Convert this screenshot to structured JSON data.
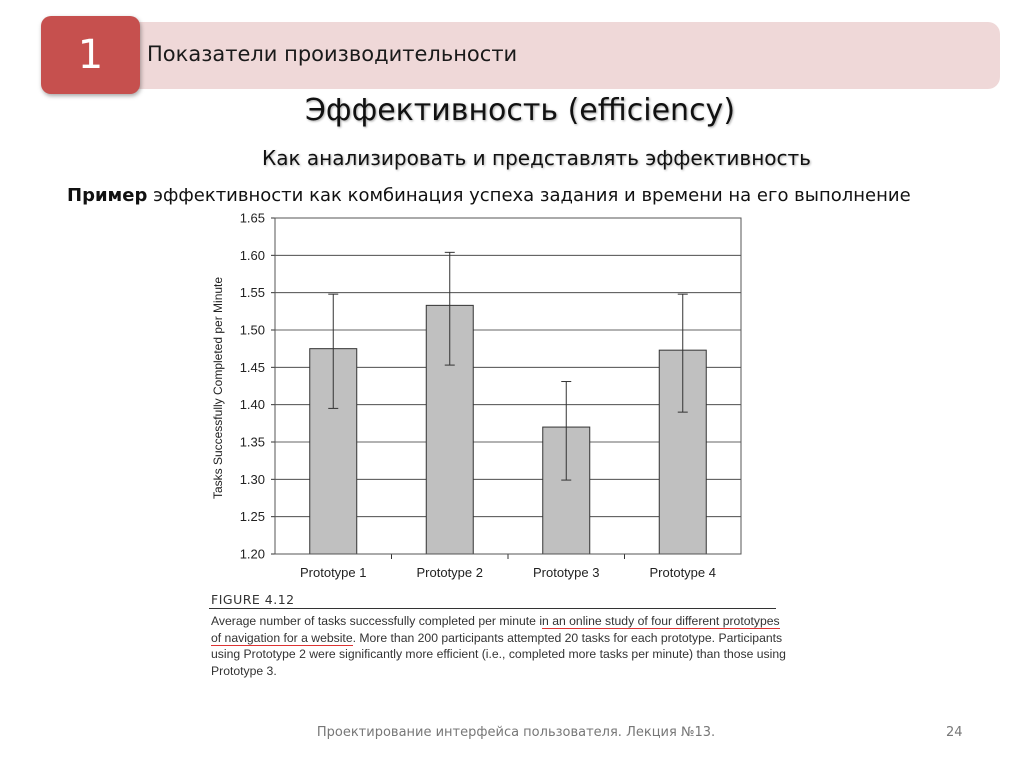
{
  "header": {
    "slide_number": "1",
    "title": "Показатели производительности"
  },
  "main_title": "Эффективность (efficiency)",
  "subtitle": "Как анализировать и представлять эффективность",
  "example": {
    "bold": "Пример",
    "text": " эффективности как комбинация успеха задания и времени на его выполнение"
  },
  "chart_data": {
    "type": "bar",
    "title": "",
    "xlabel": "",
    "ylabel": "Tasks Successfully Completed per Minute",
    "categories": [
      "Prototype 1",
      "Prototype 2",
      "Prototype 3",
      "Prototype 4"
    ],
    "values": [
      1.475,
      1.533,
      1.37,
      1.473
    ],
    "error_low": [
      1.395,
      1.453,
      1.299,
      1.39
    ],
    "error_high": [
      1.548,
      1.604,
      1.431,
      1.548
    ],
    "ylim": [
      1.2,
      1.65
    ],
    "yticks": [
      "1.20",
      "1.25",
      "1.30",
      "1.35",
      "1.40",
      "1.45",
      "1.50",
      "1.55",
      "1.60",
      "1.65"
    ],
    "grid": true,
    "bar_color": "#c0c0c0"
  },
  "figure": {
    "label": "FIGURE 4.12",
    "caption_pre": "Average number of tasks successfully completed per minute i",
    "caption_underlined": "n an online study of four different prototypes of navigation for a website",
    "caption_post": ". More than 200 participants attempted 20 tasks for each prototype. Participants using Prototype 2 were significantly more efficient (i.e., completed more tasks per minute) than those using Prototype 3."
  },
  "footer": {
    "text": "Проектирование интерфейса пользователя. Лекция №13.",
    "page_number": "24"
  },
  "colors": {
    "accent": "#c6504e",
    "header_bg": "#efd8d8"
  }
}
